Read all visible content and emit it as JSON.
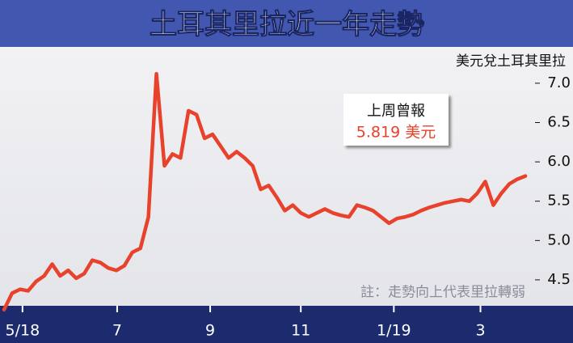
{
  "chart_data": {
    "type": "line",
    "title": "土耳其里拉近一年走勢",
    "y_label": "美元兌土耳其里拉",
    "annotation": {
      "title": "上周曾報",
      "text": "5.819 美元"
    },
    "note": "註：走勢向上代表里拉轉弱",
    "series": [
      {
        "color": "#e8412c",
        "values": [
          4.12,
          4.33,
          4.38,
          4.36,
          4.48,
          4.55,
          4.7,
          4.55,
          4.62,
          4.52,
          4.58,
          4.75,
          4.72,
          4.65,
          4.62,
          4.68,
          4.85,
          4.9,
          5.3,
          7.12,
          5.95,
          6.1,
          6.05,
          6.65,
          6.6,
          6.3,
          6.35,
          6.2,
          6.05,
          6.13,
          6.05,
          5.95,
          5.65,
          5.7,
          5.55,
          5.38,
          5.45,
          5.35,
          5.3,
          5.35,
          5.4,
          5.35,
          5.32,
          5.3,
          5.45,
          5.42,
          5.38,
          5.3,
          5.22,
          5.28,
          5.3,
          5.33,
          5.38,
          5.42,
          5.45,
          5.48,
          5.5,
          5.52,
          5.5,
          5.6,
          5.75,
          5.45,
          5.6,
          5.72,
          5.78,
          5.82
        ]
      }
    ],
    "xlim": [
      0,
      66
    ],
    "xticks": [
      {
        "value": 2.3,
        "label": "5/18"
      },
      {
        "value": 14.1,
        "label": "7"
      },
      {
        "value": 25.7,
        "label": "9"
      },
      {
        "value": 37,
        "label": "11"
      },
      {
        "value": 48.6,
        "label": "1/19"
      },
      {
        "value": 59.4,
        "label": "3"
      }
    ],
    "ylim": [
      4.17,
      7.4
    ],
    "yticks": [
      4.5,
      {
        "value": 5,
        "label": "5.0"
      },
      5.5,
      {
        "value": 6,
        "label": "6.0"
      },
      6.5,
      {
        "value": 7,
        "label": "7.0"
      }
    ]
  }
}
